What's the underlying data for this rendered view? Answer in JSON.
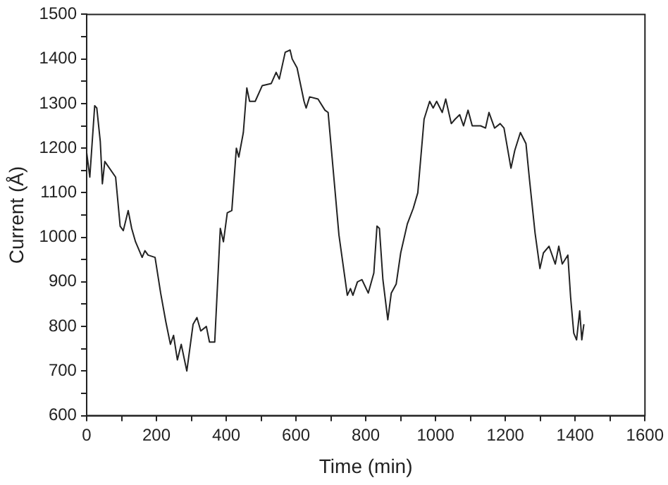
{
  "chart_data": {
    "type": "line",
    "xlabel": "Time (min)",
    "ylabel": "Current (Å)",
    "xlim": [
      0,
      1600
    ],
    "ylim": [
      600,
      1500
    ],
    "xticks": [
      0,
      {
        "value": 100,
        "label": null
      },
      200,
      {
        "value": 300,
        "label": null
      },
      400,
      {
        "value": 500,
        "label": null
      },
      600,
      {
        "value": 700,
        "label": null
      },
      800,
      {
        "value": 900,
        "label": null
      },
      1000,
      {
        "value": 1100,
        "label": null
      },
      1200,
      {
        "value": 1300,
        "label": null
      },
      1400,
      {
        "value": 1500,
        "label": null
      },
      1600
    ],
    "yticks": [
      600,
      {
        "value": 650,
        "label": null
      },
      700,
      {
        "value": 750,
        "label": null
      },
      800,
      {
        "value": 850,
        "label": null
      },
      900,
      {
        "value": 950,
        "label": null
      },
      1000,
      {
        "value": 1050,
        "label": null
      },
      1100,
      {
        "value": 1150,
        "label": null
      },
      1200,
      {
        "value": 1250,
        "label": null
      },
      1300,
      {
        "value": 1350,
        "label": null
      },
      1400,
      {
        "value": 1450,
        "label": null
      },
      1500
    ],
    "grid": false,
    "legend": false,
    "marker": "none",
    "line_style": "solid",
    "series": [
      {
        "color": "#222222",
        "x": [
          0,
          9,
          23,
          29,
          39,
          45,
          52,
          83,
          96,
          105,
          119,
          129,
          140,
          159,
          167,
          176,
          196,
          212,
          227,
          240,
          249,
          260,
          271,
          287,
          305,
          316,
          327,
          343,
          352,
          367,
          383,
          392,
          403,
          416,
          429,
          436,
          449,
          459,
          467,
          483,
          503,
          529,
          543,
          552,
          569,
          583,
          589,
          603,
          623,
          629,
          639,
          663,
          683,
          692,
          723,
          747,
          756,
          763,
          776,
          789,
          807,
          823,
          832,
          839,
          849,
          863,
          873,
          887,
          900,
          919,
          936,
          949,
          967,
          983,
          993,
          1003,
          1019,
          1029,
          1045,
          1056,
          1069,
          1080,
          1093,
          1105,
          1129,
          1143,
          1153,
          1169,
          1185,
          1196,
          1216,
          1227,
          1243,
          1259,
          1269,
          1285,
          1299,
          1309,
          1325,
          1343,
          1353,
          1363,
          1379,
          1387,
          1396,
          1404,
          1413,
          1419,
          1425
        ],
        "values": [
          1190,
          1135,
          1295,
          1290,
          1215,
          1120,
          1170,
          1135,
          1025,
          1015,
          1060,
          1020,
          990,
          955,
          970,
          960,
          955,
          875,
          810,
          760,
          780,
          725,
          760,
          700,
          805,
          820,
          790,
          800,
          765,
          765,
          1020,
          990,
          1055,
          1060,
          1200,
          1180,
          1235,
          1335,
          1305,
          1305,
          1340,
          1345,
          1370,
          1355,
          1415,
          1420,
          1400,
          1380,
          1305,
          1290,
          1315,
          1310,
          1285,
          1280,
          1005,
          870,
          885,
          870,
          900,
          905,
          875,
          920,
          1025,
          1020,
          905,
          815,
          875,
          895,
          965,
          1030,
          1065,
          1100,
          1265,
          1305,
          1290,
          1305,
          1280,
          1310,
          1255,
          1265,
          1275,
          1250,
          1285,
          1250,
          1250,
          1245,
          1280,
          1245,
          1255,
          1245,
          1155,
          1195,
          1235,
          1210,
          1130,
          1010,
          930,
          965,
          980,
          940,
          980,
          940,
          960,
          865,
          785,
          770,
          835,
          770,
          805
        ]
      }
    ]
  }
}
